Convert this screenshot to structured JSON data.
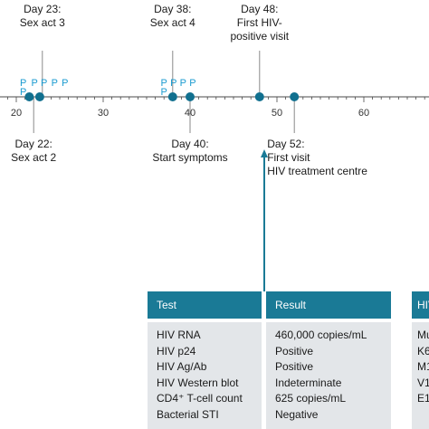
{
  "timeline": {
    "axis": {
      "min": 18,
      "max": 70,
      "ticks": [
        20,
        30,
        40,
        50,
        60
      ]
    },
    "colors": {
      "line": "#4a4a4a",
      "marker": "#11708f",
      "p_label": "#1b9bd0",
      "arrow": "#1a7a96"
    },
    "markers": [
      21.5,
      22.7,
      38,
      40,
      48,
      52
    ],
    "p_labels": [
      {
        "day": 20.8,
        "text": "P",
        "row": 0
      },
      {
        "day": 20.8,
        "text": "P",
        "row": 1
      },
      {
        "day": 22.1,
        "text": "P",
        "row": 0
      },
      {
        "day": 23.2,
        "text": "P",
        "row": 0
      },
      {
        "day": 24.4,
        "text": "P",
        "row": 0
      },
      {
        "day": 25.6,
        "text": "P",
        "row": 0
      },
      {
        "day": 37.0,
        "text": "P",
        "row": 0
      },
      {
        "day": 37.0,
        "text": "P",
        "row": 1
      },
      {
        "day": 38.1,
        "text": "P",
        "row": 0
      },
      {
        "day": 39.2,
        "text": "P",
        "row": 0
      },
      {
        "day": 40.3,
        "text": "P",
        "row": 0
      }
    ],
    "events_above": [
      {
        "day": 23,
        "lines": [
          "Day 23:",
          "Sex act  3"
        ]
      },
      {
        "day": 38,
        "lines": [
          "Day 38:",
          "Sex act  4"
        ]
      },
      {
        "day": 48,
        "lines": [
          "Day 48:",
          "First HIV-",
          "positive visit"
        ]
      }
    ],
    "events_below": [
      {
        "day": 22,
        "lines": [
          "Day 22:",
          "Sex act 2"
        ]
      },
      {
        "day": 40,
        "lines": [
          "Day 40:",
          "Start symptoms"
        ]
      },
      {
        "day": 52,
        "lines": [
          "Day 52:",
          "First visit",
          "HIV treatment centre"
        ]
      }
    ]
  },
  "table": {
    "headers": {
      "test": "Test",
      "result": "Result",
      "extra": "HIV"
    },
    "rows": [
      {
        "test": "HIV RNA",
        "result": "460,000 copies/mL",
        "extra": "Mu"
      },
      {
        "test": "HIV p24",
        "result": "Positive",
        "extra": "K6"
      },
      {
        "test": "HIV Ag/Ab",
        "result": "Positive",
        "extra": "M1"
      },
      {
        "test": "HIV Western blot",
        "result": "Indeterminate",
        "extra": "V1"
      },
      {
        "test": "CD4⁺ T-cell count",
        "result": "625 copies/mL",
        "extra": "E1"
      },
      {
        "test": "Bacterial STI",
        "result": "Negative",
        "extra": ""
      }
    ]
  }
}
